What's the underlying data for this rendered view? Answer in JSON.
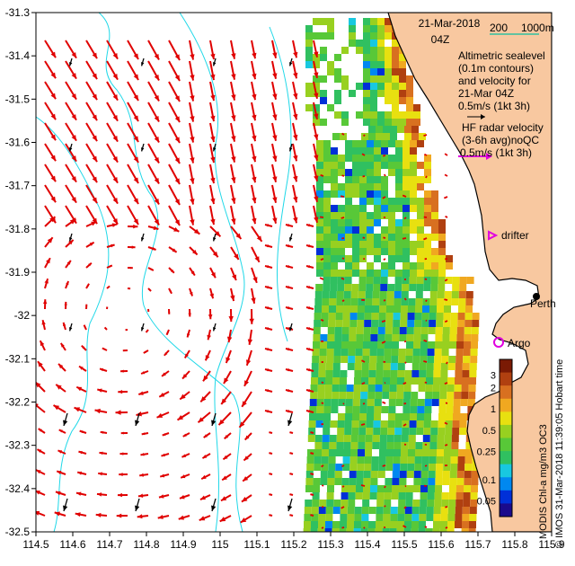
{
  "title": {
    "date": "21-Mar-2018",
    "time": "04Z"
  },
  "scale_bar": {
    "label_a": "200",
    "label_b": "1000m"
  },
  "legend": {
    "altimetric_lines": [
      "Altimetric sealevel",
      "(0.1m contours)",
      "and velocity for",
      "21-Mar 04Z"
    ],
    "altimetric_arrow": "0.5m/s (1kt 3h)",
    "radar_lines": [
      "HF radar velocity",
      "(3-6h avg)noQC"
    ],
    "radar_arrow": "0.5m/s (1kt 3h)",
    "drifter": "drifter",
    "argo": "Argo",
    "city": "Perth"
  },
  "side_text": {
    "product": "MODIS Chl-a mg/m3 OC3",
    "credit": "© IMOS 31-Mar-2018 11:39:05 Hobart time"
  },
  "colorbar": {
    "ticks": [
      {
        "label": "3",
        "value": 3
      },
      {
        "label": "2",
        "value": 2
      },
      {
        "label": "1",
        "value": 1
      },
      {
        "label": "0.5",
        "value": 0.5
      },
      {
        "label": "0.25",
        "value": 0.25
      },
      {
        "label": "0.1",
        "value": 0.1
      },
      {
        "label": "0.05",
        "value": 0.05
      }
    ],
    "colors": [
      "#1a0a8c",
      "#0030d8",
      "#0088f0",
      "#18c8e0",
      "#30c060",
      "#58c838",
      "#98d020",
      "#e8e010",
      "#f0a820",
      "#d87020",
      "#b04010",
      "#7a1a04"
    ]
  },
  "axes": {
    "lon_min": 114.5,
    "lon_max": 115.9,
    "lat_min": -32.5,
    "lat_max": -31.3,
    "x_ticks": [
      "114.5",
      "114.6",
      "114.7",
      "114.8",
      "114.9",
      "115",
      "115.1",
      "115.2",
      "115.3",
      "115.4",
      "115.5",
      "115.6",
      "115.7",
      "115.8",
      "115.9"
    ],
    "y_ticks": [
      "-31.3",
      "-31.4",
      "-31.5",
      "-31.6",
      "-31.7",
      "-31.8",
      "-31.9",
      "-32",
      "-32.1",
      "-32.2",
      "-32.3",
      "-32.4",
      "-32.5"
    ]
  },
  "colors": {
    "land": "#f8c8a0",
    "radar_arrow": "#e00000",
    "altimetry_arrow": "#000000",
    "contour": "#20d8e8",
    "legend_arrow_radar": "#e000e0",
    "scale_line": "#30c0a0"
  }
}
